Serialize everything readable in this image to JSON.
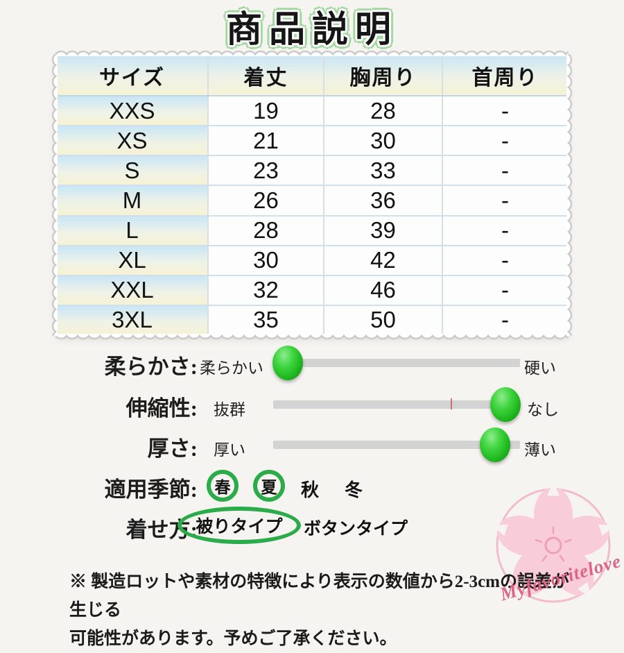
{
  "page": {
    "title": "商品説明",
    "background": "#f6f4f1"
  },
  "size_table": {
    "headers": [
      "サイズ",
      "着丈",
      "胸周り",
      "首周り"
    ],
    "rows": [
      {
        "size": "XXS",
        "length": "19",
        "chest": "28",
        "neck": "-"
      },
      {
        "size": "XS",
        "length": "21",
        "chest": "30",
        "neck": "-"
      },
      {
        "size": "S",
        "length": "23",
        "chest": "33",
        "neck": "-"
      },
      {
        "size": "M",
        "length": "26",
        "chest": "36",
        "neck": "-"
      },
      {
        "size": "L",
        "length": "28",
        "chest": "39",
        "neck": "-"
      },
      {
        "size": "XL",
        "length": "30",
        "chest": "42",
        "neck": "-"
      },
      {
        "size": "XXL",
        "length": "32",
        "chest": "46",
        "neck": "-"
      },
      {
        "size": "3XL",
        "length": "35",
        "chest": "50",
        "neck": "-"
      }
    ]
  },
  "attributes": [
    {
      "label": "柔らかさ:",
      "left": "柔らかい",
      "right": "硬い",
      "knob_percent": 6
    },
    {
      "label": "伸縮性:",
      "left": "抜群",
      "right": "なし",
      "knob_percent": 94
    },
    {
      "label": "厚さ:",
      "left": "厚い",
      "right": "薄い",
      "knob_percent": 90
    }
  ],
  "seasons": {
    "label": "適用季節:",
    "items": [
      {
        "text": "春",
        "circled": true
      },
      {
        "text": "夏",
        "circled": true
      },
      {
        "text": "秋",
        "circled": false
      },
      {
        "text": "冬",
        "circled": false
      }
    ]
  },
  "dress_style": {
    "label": "着せ方:",
    "options": [
      {
        "text": "被りタイプ",
        "circled": true
      },
      {
        "text": "ボタンタイプ",
        "circled": false
      }
    ]
  },
  "note": {
    "line1": "※ 製造ロットや素材の特徴により表示の数値から2-3cmの誤差が生じる",
    "line2": "可能性があります。予めご了承ください。"
  },
  "watermark": {
    "brand": "Myfavoritelove"
  },
  "colors": {
    "accent_green": "#2bab49",
    "knob_green": "#2ec32e",
    "track_gray": "#d3d3d3",
    "title_halo_green": "#a3d9a0",
    "cell_gradient_top": "#c9e6f6",
    "cell_gradient_bottom": "#f6f2d5",
    "flower_pink": "#f8cdd9",
    "brand_pink": "#dc6585"
  }
}
